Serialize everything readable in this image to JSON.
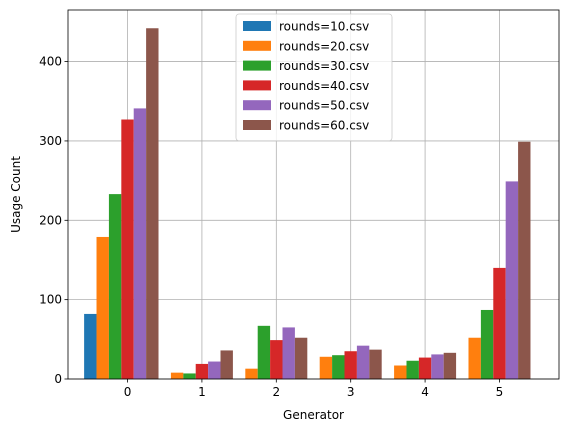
{
  "chart_data": {
    "type": "bar",
    "title": "",
    "xlabel": "Generator",
    "ylabel": "Usage Count",
    "categories": [
      "0",
      "1",
      "2",
      "3",
      "4",
      "5"
    ],
    "xlim": [
      -0.8,
      5.8
    ],
    "ylim": [
      0,
      465
    ],
    "yticks": [
      0,
      100,
      200,
      300,
      400
    ],
    "grid": true,
    "legend_position": "top-center",
    "series": [
      {
        "name": "rounds=10.csv",
        "color": "#1f77b4",
        "values": [
          82,
          0,
          0,
          0,
          0,
          0
        ]
      },
      {
        "name": "rounds=20.csv",
        "color": "#ff7f0e",
        "values": [
          179,
          8,
          13,
          28,
          17,
          52
        ]
      },
      {
        "name": "rounds=30.csv",
        "color": "#2ca02c",
        "values": [
          233,
          7,
          67,
          30,
          23,
          87
        ]
      },
      {
        "name": "rounds=40.csv",
        "color": "#d62728",
        "values": [
          327,
          19,
          49,
          35,
          27,
          140
        ]
      },
      {
        "name": "rounds=50.csv",
        "color": "#9467bd",
        "values": [
          341,
          22,
          65,
          42,
          31,
          249
        ]
      },
      {
        "name": "rounds=60.csv",
        "color": "#8c564b",
        "values": [
          442,
          36,
          52,
          37,
          33,
          299
        ]
      }
    ]
  }
}
